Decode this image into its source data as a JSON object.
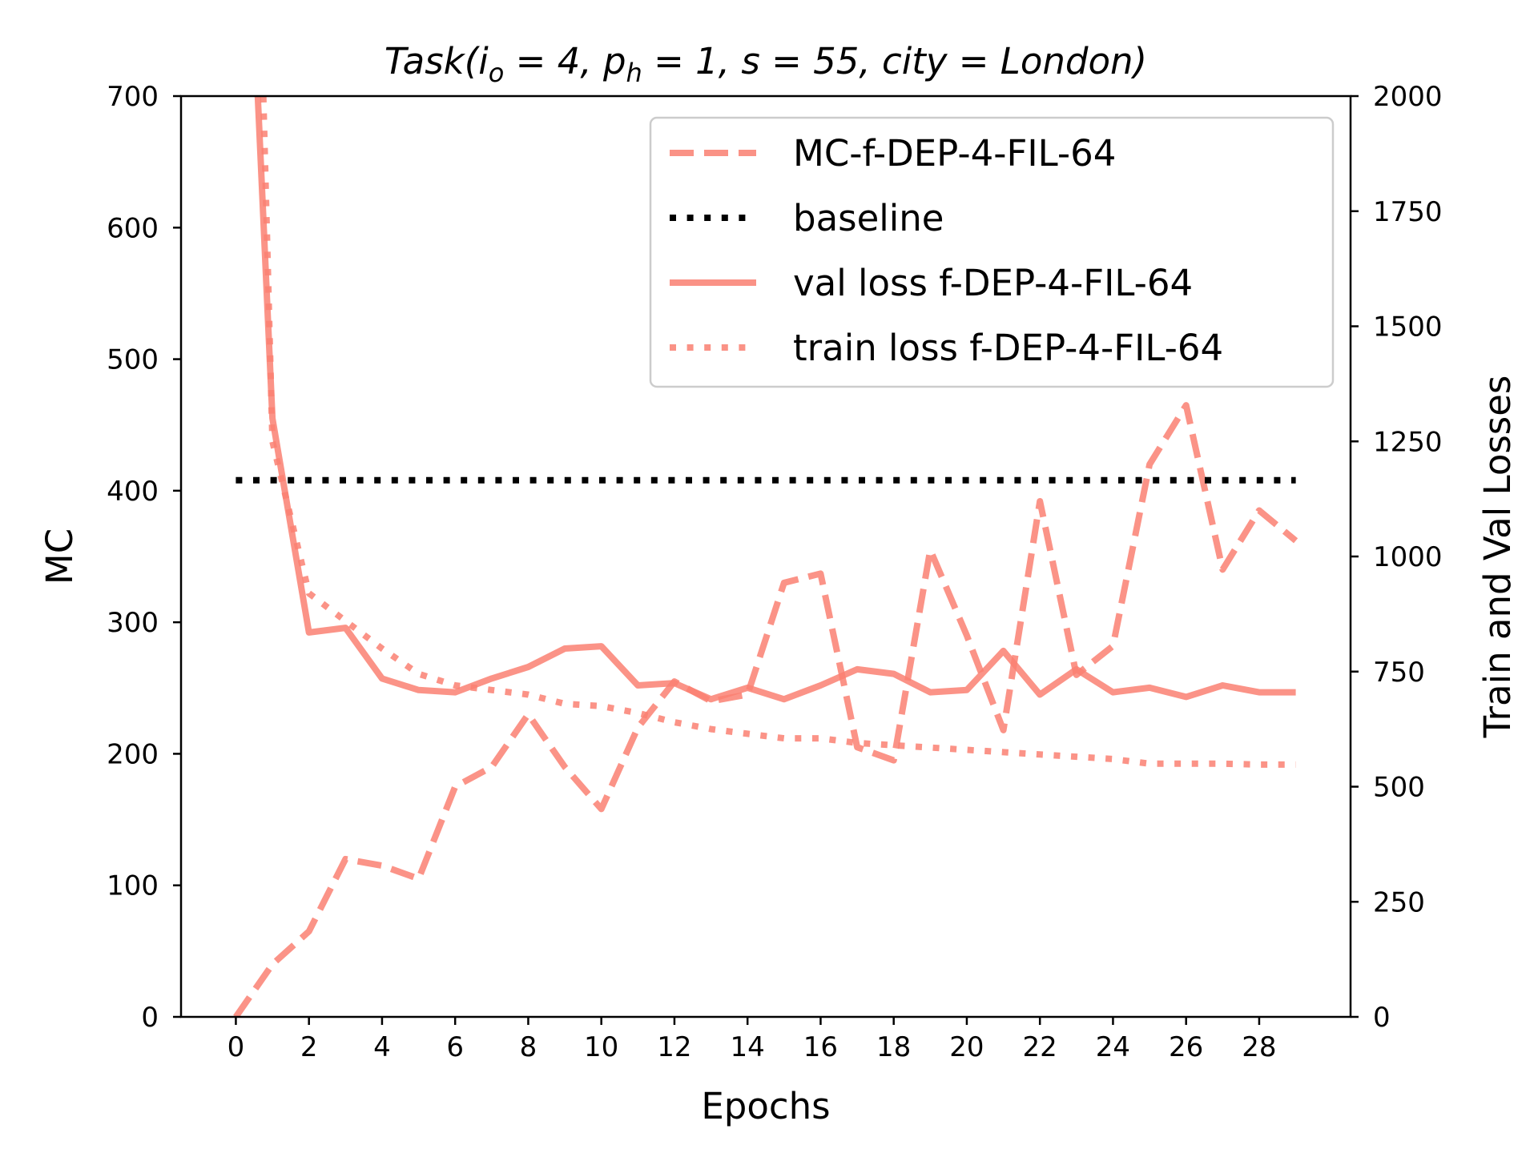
{
  "chart_data": {
    "type": "line",
    "title": {
      "prefix": "Task(",
      "io_var": "i",
      "io_sub": "o",
      "io_val": " = 4, ",
      "ph_var": "p",
      "ph_sub": "h",
      "ph_val": " = 1, s = 55, city = London)"
    },
    "xlabel": "Epochs",
    "ylabel_left": "MC",
    "ylabel_right": "Train and Val Losses",
    "xlim": [
      -1.5,
      30.5
    ],
    "ylim_left": [
      0,
      700
    ],
    "ylim_right": [
      0,
      2000
    ],
    "xticks": [
      "0",
      "2",
      "4",
      "6",
      "8",
      "10",
      "12",
      "14",
      "16",
      "18",
      "20",
      "22",
      "24",
      "26",
      "28"
    ],
    "yticks_left": [
      "0",
      "100",
      "200",
      "300",
      "400",
      "500",
      "600",
      "700"
    ],
    "yticks_right": [
      "0",
      "250",
      "500",
      "750",
      "1000",
      "1250",
      "1500",
      "1750",
      "2000"
    ],
    "grid": false,
    "legend_position": "top-right",
    "colors": {
      "series": "#fa8072",
      "baseline": "#000000"
    },
    "series": [
      {
        "name": "MC-f-DEP-4-FIL-64",
        "axis": "left",
        "style": "dashed",
        "x": [
          0,
          1,
          2,
          3,
          4,
          5,
          6,
          7,
          8,
          9,
          10,
          11,
          12,
          13,
          14,
          15,
          16,
          17,
          18,
          19,
          20,
          21,
          22,
          23,
          24,
          25,
          26,
          27,
          28,
          29
        ],
        "values": [
          0,
          40,
          65,
          120,
          115,
          105,
          175,
          190,
          230,
          190,
          158,
          220,
          255,
          240,
          245,
          330,
          337,
          205,
          195,
          355,
          290,
          218,
          392,
          260,
          282,
          420,
          465,
          340,
          385,
          362
        ]
      },
      {
        "name": "baseline",
        "axis": "left",
        "style": "dotted",
        "x": [
          0,
          29
        ],
        "values": [
          408,
          408
        ]
      },
      {
        "name": "val loss f-DEP-4-FIL-64",
        "axis": "right",
        "style": "solid",
        "x": [
          0.6,
          1,
          2,
          3,
          4,
          5,
          6,
          7,
          8,
          9,
          10,
          11,
          12,
          13,
          14,
          15,
          16,
          17,
          18,
          19,
          20,
          21,
          22,
          23,
          24,
          25,
          26,
          27,
          28,
          29
        ],
        "values": [
          2000,
          1300,
          835,
          845,
          735,
          710,
          705,
          735,
          760,
          800,
          805,
          720,
          725,
          690,
          715,
          690,
          720,
          755,
          745,
          705,
          710,
          795,
          700,
          755,
          705,
          715,
          695,
          720,
          705,
          705
        ]
      },
      {
        "name": "train loss f-DEP-4-FIL-64",
        "axis": "right",
        "style": "dotted",
        "x": [
          0.75,
          1,
          2,
          3,
          4,
          5,
          6,
          7,
          8,
          9,
          10,
          11,
          12,
          13,
          14,
          15,
          16,
          17,
          18,
          19,
          20,
          21,
          22,
          23,
          24,
          25,
          26,
          27,
          28,
          29
        ],
        "values": [
          2000,
          1250,
          920,
          860,
          800,
          745,
          720,
          710,
          700,
          680,
          675,
          660,
          640,
          625,
          615,
          605,
          605,
          595,
          590,
          585,
          580,
          575,
          570,
          565,
          560,
          550,
          550,
          550,
          548,
          548
        ]
      }
    ]
  }
}
